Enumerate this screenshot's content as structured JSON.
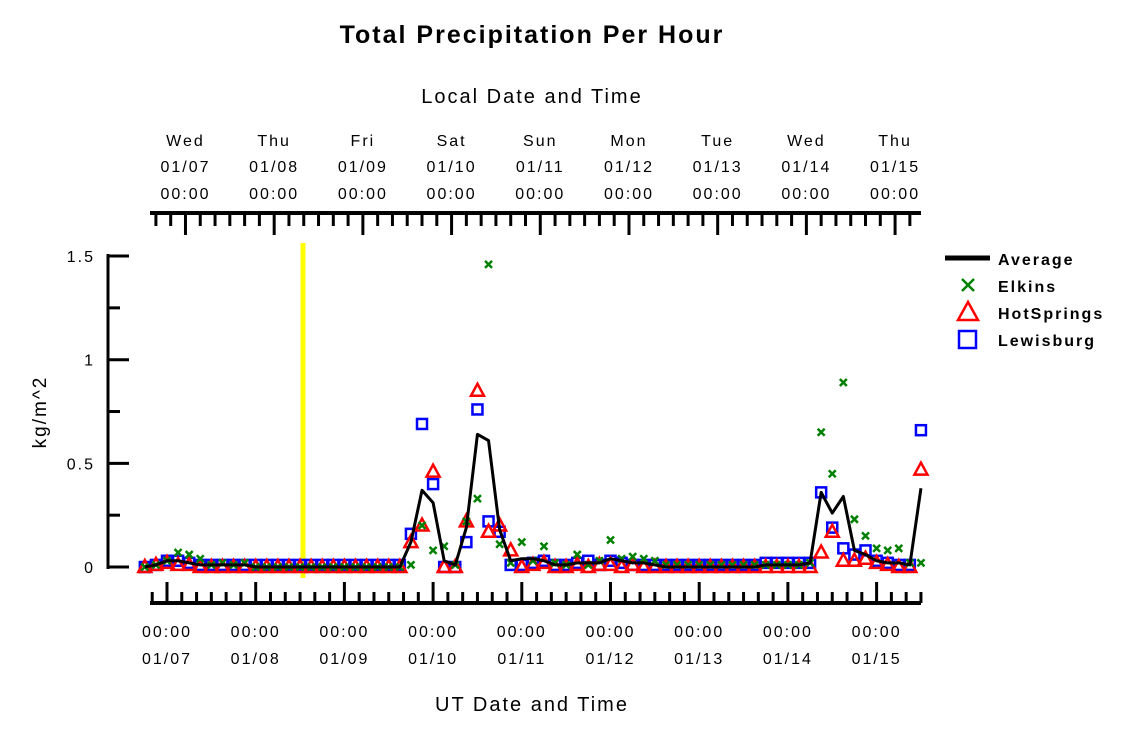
{
  "chart_data": {
    "type": "line",
    "title": "Total Precipitation Per Hour",
    "top_axis_label": "Local Date and Time",
    "xlabel": "UT Date and Time",
    "ylabel": "kg/m^2",
    "ylim": [
      0,
      1.5
    ],
    "yticks": [
      "0",
      "0.5",
      "1",
      "1.5"
    ],
    "x_units": "hours since 01/07 00:00 UT",
    "x_start": -6,
    "x_step": 3,
    "xlim": [
      -8,
      204
    ],
    "local_offset_hours": 5,
    "top_ticks": [
      {
        "day": "Wed",
        "date": "01/07",
        "time": "00:00"
      },
      {
        "day": "Thu",
        "date": "01/08",
        "time": "00:00"
      },
      {
        "day": "Fri",
        "date": "01/09",
        "time": "00:00"
      },
      {
        "day": "Sat",
        "date": "01/10",
        "time": "00:00"
      },
      {
        "day": "Sun",
        "date": "01/11",
        "time": "00:00"
      },
      {
        "day": "Mon",
        "date": "01/12",
        "time": "00:00"
      },
      {
        "day": "Tue",
        "date": "01/13",
        "time": "00:00"
      },
      {
        "day": "Wed",
        "date": "01/14",
        "time": "00:00"
      },
      {
        "day": "Thu",
        "date": "01/15",
        "time": "00:00"
      }
    ],
    "bottom_ticks": [
      {
        "time": "00:00",
        "date": "01/07"
      },
      {
        "time": "00:00",
        "date": "01/08"
      },
      {
        "time": "00:00",
        "date": "01/09"
      },
      {
        "time": "00:00",
        "date": "01/10"
      },
      {
        "time": "00:00",
        "date": "01/11"
      },
      {
        "time": "00:00",
        "date": "01/12"
      },
      {
        "time": "00:00",
        "date": "01/13"
      },
      {
        "time": "00:00",
        "date": "01/14"
      },
      {
        "time": "00:00",
        "date": "01/15"
      }
    ],
    "marker_line_hour": 36.8,
    "legend_position": "right",
    "series": [
      {
        "name": "Average",
        "style": "line",
        "color": "#000000",
        "values": [
          0,
          0.01,
          0.03,
          0.03,
          0.02,
          0.01,
          0.01,
          0.01,
          0.01,
          0.01,
          0,
          0,
          0,
          0,
          0,
          0,
          0,
          0,
          0,
          0,
          0,
          0,
          0,
          0,
          0.12,
          0.37,
          0.31,
          0.03,
          0.01,
          0.19,
          0.64,
          0.61,
          0.18,
          0.03,
          0.04,
          0.04,
          0.03,
          0.01,
          0.01,
          0.02,
          0.02,
          0.02,
          0.04,
          0.03,
          0.02,
          0.02,
          0.01,
          0,
          0,
          0,
          0,
          0,
          0,
          0,
          0,
          0,
          0.01,
          0.01,
          0.01,
          0.01,
          0.02,
          0.36,
          0.26,
          0.34,
          0.08,
          0.06,
          0.03,
          0.02,
          0.02,
          0.01,
          0.38
        ]
      },
      {
        "name": "Elkins",
        "style": "x",
        "color": "#008000",
        "values": [
          0,
          0.01,
          0.03,
          0.07,
          0.06,
          0.04,
          0.01,
          0.02,
          0.01,
          0.02,
          0,
          0,
          0,
          0,
          0,
          0,
          0,
          0,
          0,
          0,
          0,
          0,
          0,
          0,
          0.01,
          0.2,
          0.08,
          0.1,
          0.01,
          0.22,
          0.33,
          1.46,
          0.11,
          0.02,
          0.12,
          0.03,
          0.1,
          0.02,
          0.01,
          0.06,
          0.01,
          0.03,
          0.13,
          0.04,
          0.05,
          0.04,
          0.03,
          0.01,
          0.01,
          0.01,
          0.01,
          0.01,
          0.01,
          0.01,
          0.01,
          0.01,
          0.01,
          0.01,
          0.01,
          0.01,
          0.02,
          0.65,
          0.45,
          0.89,
          0.23,
          0.15,
          0.09,
          0.08,
          0.09,
          0.02,
          0.02
        ]
      },
      {
        "name": "HotSprings",
        "style": "triangle",
        "color": "#ff0000",
        "values": [
          0,
          0.01,
          0.02,
          0.01,
          0.01,
          0,
          0,
          0,
          0,
          0,
          0,
          0,
          0,
          0,
          0,
          0,
          0,
          0,
          0,
          0,
          0,
          0,
          0,
          0,
          0.12,
          0.2,
          0.46,
          0,
          0,
          0.22,
          0.85,
          0.17,
          0.2,
          0.08,
          0,
          0.01,
          0.02,
          0,
          0,
          0.01,
          0,
          0.01,
          0.01,
          0,
          0.01,
          0,
          0,
          0,
          0,
          0,
          0,
          0,
          0,
          0,
          0,
          0,
          0,
          0,
          0,
          0,
          0,
          0.07,
          0.17,
          0.03,
          0.03,
          0.04,
          0.02,
          0.01,
          0,
          0,
          0.47
        ]
      },
      {
        "name": "Lewisburg",
        "style": "square",
        "color": "#0000ff",
        "values": [
          0,
          0.01,
          0.03,
          0.03,
          0.02,
          0.01,
          0.01,
          0.01,
          0.01,
          0.01,
          0.01,
          0.01,
          0.01,
          0.01,
          0.01,
          0.01,
          0.01,
          0.01,
          0.01,
          0.01,
          0.01,
          0.01,
          0.01,
          0.01,
          0.16,
          0.69,
          0.4,
          0,
          0,
          0.12,
          0.76,
          0.22,
          0.17,
          0.01,
          0.01,
          0.02,
          0.03,
          0.01,
          0.01,
          0.02,
          0.03,
          0.01,
          0.03,
          0.02,
          0.01,
          0.01,
          0.01,
          0.01,
          0.01,
          0.01,
          0.01,
          0.01,
          0.01,
          0.01,
          0.01,
          0.01,
          0.02,
          0.02,
          0.02,
          0.02,
          0.02,
          0.36,
          0.19,
          0.09,
          0.06,
          0.08,
          0.03,
          0.02,
          0.01,
          0.01,
          0.66
        ]
      }
    ]
  }
}
